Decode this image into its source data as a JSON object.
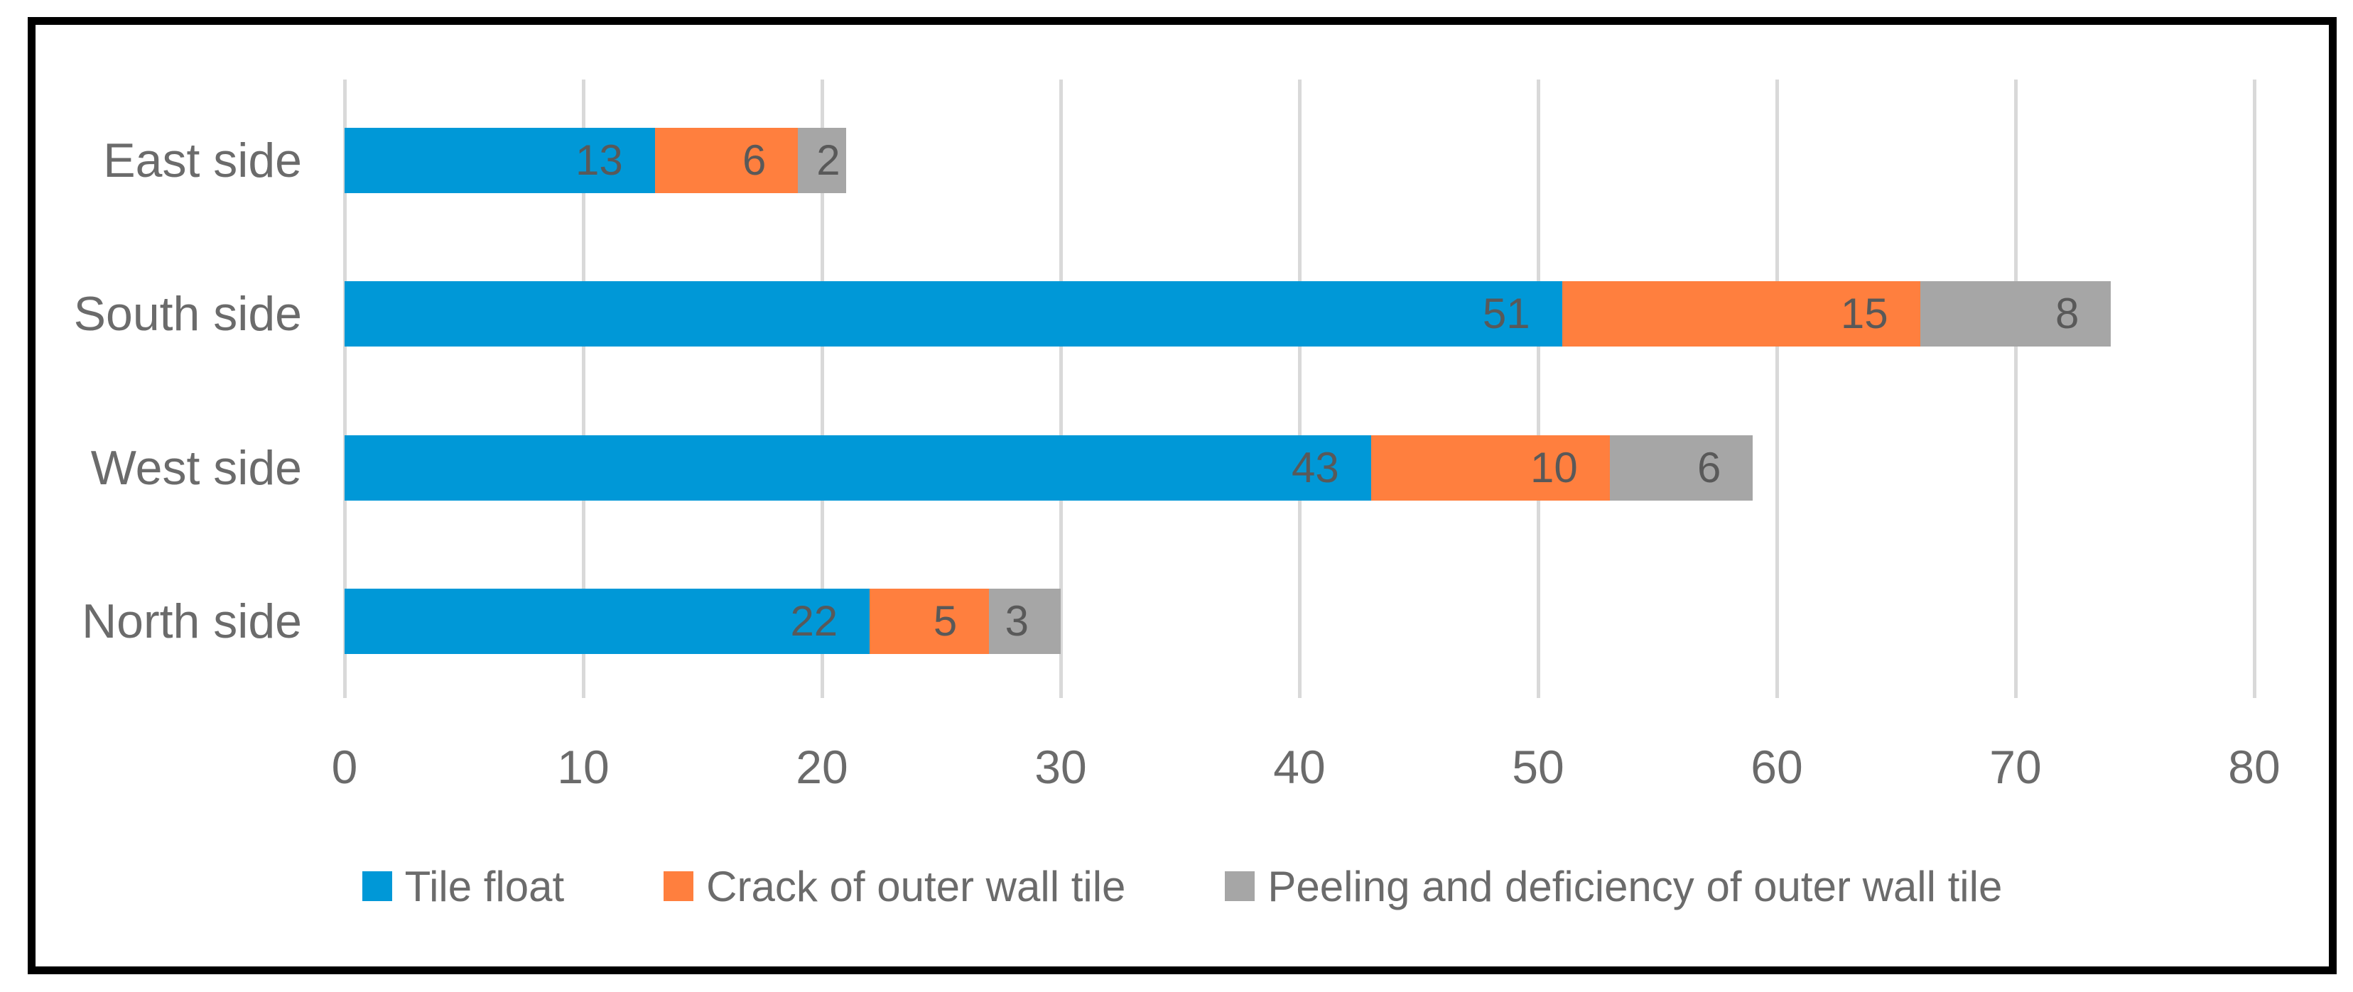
{
  "figure": {
    "background_color": "#FFFFFF",
    "border_color": "#000000"
  },
  "chart_data": {
    "type": "bar",
    "orientation": "horizontal",
    "stacked": true,
    "title": "",
    "xlabel": "",
    "ylabel": "",
    "categories": [
      "East side",
      "South side",
      "West side",
      "North side"
    ],
    "series": [
      {
        "name": "Tile float",
        "color": "#0098D7",
        "values": [
          13,
          51,
          43,
          22
        ]
      },
      {
        "name": "Crack of outer wall tile",
        "color": "#FF7F3E",
        "values": [
          6,
          15,
          10,
          5
        ]
      },
      {
        "name": "Peeling and deficiency of outer wall tile",
        "color": "#A6A6A6",
        "values": [
          2,
          8,
          6,
          3
        ]
      }
    ],
    "xlim": [
      0,
      80
    ],
    "xticks": [
      0,
      10,
      20,
      30,
      40,
      50,
      60,
      70,
      80
    ],
    "grid": "vertical",
    "gridline_color": "#D9D9D9",
    "data_labels": true,
    "data_label_position": "inside-end",
    "data_label_color": "#595959",
    "axis_text_color": "#6B6B6B",
    "legend_position": "bottom"
  },
  "legend": {
    "items": [
      {
        "label": "Tile float",
        "color": "#0098D7"
      },
      {
        "label": "Crack of outer wall tile",
        "color": "#FF7F3E"
      },
      {
        "label": "Peeling and deficiency of outer wall tile",
        "color": "#A6A6A6"
      }
    ]
  }
}
